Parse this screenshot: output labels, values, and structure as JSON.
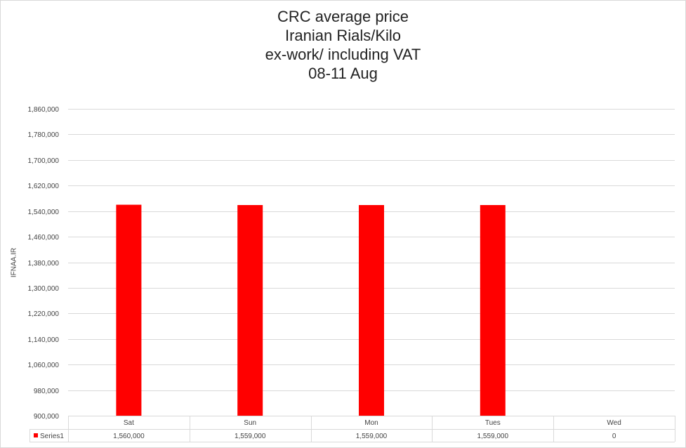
{
  "chart_data": {
    "type": "bar",
    "title_lines": [
      "CRC average price",
      "Iranian Rials/Kilo",
      "ex-work/ including VAT",
      "08-11 Aug"
    ],
    "ylabel": "IFNAA.IR",
    "xlabel": "",
    "categories": [
      "Sat",
      "Sun",
      "Mon",
      "Tues",
      "Wed"
    ],
    "series": [
      {
        "name": "Series1",
        "values": [
          1560000,
          1559000,
          1559000,
          1559000,
          0
        ],
        "value_labels": [
          "1,560,000",
          "1,559,000",
          "1,559,000",
          "1,559,000",
          "0"
        ],
        "color": "#ff0000"
      }
    ],
    "ylim": [
      900000,
      1860000
    ],
    "yticks": [
      900000,
      980000,
      1060000,
      1140000,
      1220000,
      1300000,
      1380000,
      1460000,
      1540000,
      1620000,
      1700000,
      1780000,
      1860000
    ],
    "ytick_labels": [
      "900,000",
      "980,000",
      "1,060,000",
      "1,140,000",
      "1,220,000",
      "1,300,000",
      "1,380,000",
      "1,460,000",
      "1,540,000",
      "1,620,000",
      "1,700,000",
      "1,780,000",
      "1,860,000"
    ],
    "grid": true,
    "legend": "data-table",
    "gridline_color": "#d9d9d9"
  }
}
